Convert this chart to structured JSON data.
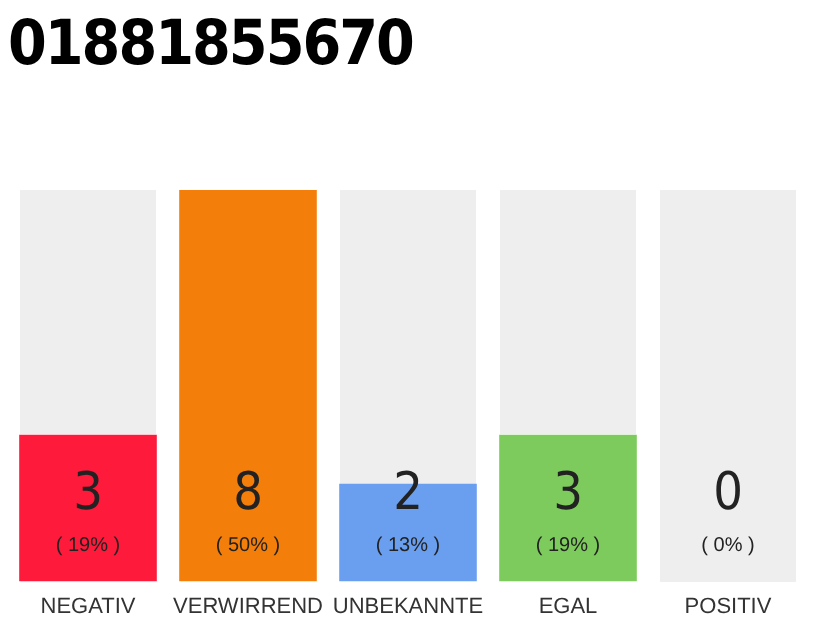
{
  "chart_data": {
    "type": "bar",
    "title": "01881855670",
    "categories": [
      "NEGATIV",
      "VERWIRREND",
      "UNBEKANNTE",
      "EGAL",
      "POSITIV"
    ],
    "values": [
      3,
      8,
      2,
      3,
      0
    ],
    "colors": [
      "#fd1a3b",
      "#f47e0a",
      "#6a9ff0",
      "#7dcb5c",
      "#aaaaaa"
    ],
    "data_labels": true,
    "value_labels": [
      "3\n( 19% )",
      "8\n( 50% )",
      "2\n( 13% )",
      "3\n( 19% )",
      "0\n( 0% )"
    ],
    "grid": false,
    "legend": false
  }
}
